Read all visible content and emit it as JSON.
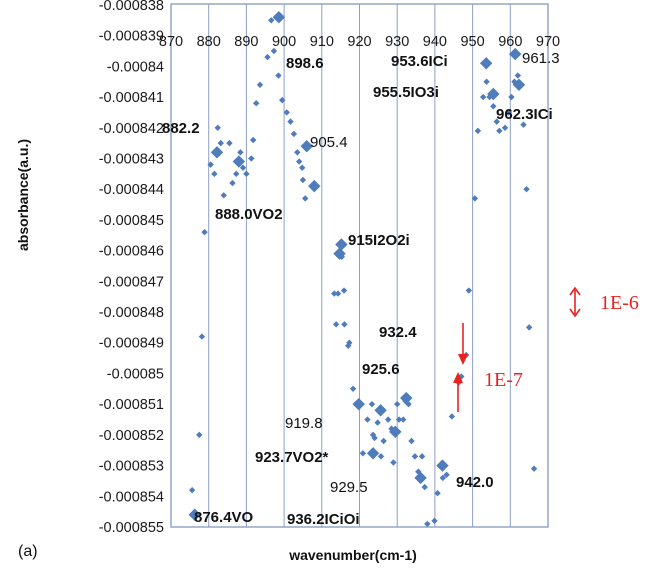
{
  "panel_label": "(a)",
  "chart_data": {
    "type": "scatter",
    "xlabel": "wavenumber(cm-1)",
    "ylabel": "absorbance(a.u.)",
    "xlim": [
      870,
      970
    ],
    "ylim": [
      -0.000855,
      -0.0008381
    ],
    "x_tick_labels": [
      "870",
      "880",
      "890",
      "900",
      "910",
      "920",
      "930",
      "940",
      "950",
      "960",
      "970"
    ],
    "y_ticks": [
      -0.000838,
      -0.000839,
      -0.00084,
      -0.000841,
      -0.000842,
      -0.000843,
      -0.000844,
      -0.000845,
      -0.000846,
      -0.000847,
      -0.000848,
      -0.000849,
      -0.00085,
      -0.000851,
      -0.000852,
      -0.000853,
      -0.000854,
      -0.000855
    ],
    "y_tick_labels": [
      "-0.000838",
      "-0.000839",
      "-0.00084",
      "-0.000841",
      "-0.000842",
      "-0.000843",
      "-0.000844",
      "-0.000845",
      "-0.000846",
      "-0.000847",
      "-0.000848",
      "-0.000849",
      "-0.00085",
      "-0.000851",
      "-0.000852",
      "-0.000853",
      "-0.000854",
      "-0.000855"
    ],
    "grid": "vertical",
    "marker_color": "#4f7cba",
    "note_color": "#e8231f",
    "points_small": [
      [
        875.6,
        -0.0008538
      ],
      [
        877.5,
        -0.000852
      ],
      [
        878.2,
        -0.0008488
      ],
      [
        878.9,
        -0.0008454
      ],
      [
        880.5,
        -0.0008432
      ],
      [
        881.5,
        -0.0008435
      ],
      [
        882.4,
        -0.000842
      ],
      [
        883.2,
        -0.0008425
      ],
      [
        884.0,
        -0.0008442
      ],
      [
        885.5,
        -0.0008425
      ],
      [
        886.3,
        -0.0008438
      ],
      [
        887.3,
        -0.0008435
      ],
      [
        888.4,
        -0.0008428
      ],
      [
        889.1,
        -0.0008433
      ],
      [
        890.0,
        -0.0008435
      ],
      [
        891.3,
        -0.000843
      ],
      [
        891.8,
        -0.0008424
      ],
      [
        892.6,
        -0.0008412
      ],
      [
        893.6,
        -0.0008406
      ],
      [
        895.6,
        -0.0008397
      ],
      [
        896.6,
        -0.0008385
      ],
      [
        897.3,
        -0.0008395
      ],
      [
        898.5,
        -0.0008403
      ],
      [
        899.5,
        -0.0008411
      ],
      [
        900.7,
        -0.0008415
      ],
      [
        901.7,
        -0.0008418
      ],
      [
        902.6,
        -0.0008422
      ],
      [
        903.5,
        -0.0008428
      ],
      [
        904.0,
        -0.0008431
      ],
      [
        904.8,
        -0.0008433
      ],
      [
        905.0,
        -0.0008437
      ],
      [
        905.6,
        -0.0008443
      ],
      [
        915.3,
        -0.0008462
      ],
      [
        915.9,
        -0.0008473
      ],
      [
        913.8,
        -0.0008484
      ],
      [
        913.3,
        -0.0008474
      ],
      [
        914.3,
        -0.0008474
      ],
      [
        916.0,
        -0.0008484
      ],
      [
        917.0,
        -0.0008491
      ],
      [
        917.3,
        -0.000849
      ],
      [
        918.3,
        -0.0008505
      ],
      [
        919.0,
        -0.000851
      ],
      [
        920.9,
        -0.0008526
      ],
      [
        922.1,
        -0.0008515
      ],
      [
        923.3,
        -0.000851
      ],
      [
        923.6,
        -0.000852
      ],
      [
        924.0,
        -0.0008521
      ],
      [
        924.8,
        -0.0008516
      ],
      [
        925.7,
        -0.0008527
      ],
      [
        926.4,
        -0.0008522
      ],
      [
        927.6,
        -0.0008515
      ],
      [
        928.5,
        -0.0008518
      ],
      [
        929.0,
        -0.0008529
      ],
      [
        930.0,
        -0.000851
      ],
      [
        930.5,
        -0.0008515
      ],
      [
        931.6,
        -0.0008515
      ],
      [
        932.2,
        -0.0008509
      ],
      [
        933.0,
        -0.000851
      ],
      [
        933.8,
        -0.0008522
      ],
      [
        934.7,
        -0.0008527
      ],
      [
        935.6,
        -0.0008532
      ],
      [
        936.6,
        -0.0008527
      ],
      [
        937.3,
        -0.0008537
      ],
      [
        938.0,
        -0.0008549
      ],
      [
        939.9,
        -0.0008548
      ],
      [
        940.7,
        -0.0008539
      ],
      [
        942.1,
        -0.0008534
      ],
      [
        943.1,
        -0.0008533
      ],
      [
        944.5,
        -0.0008514
      ],
      [
        946.3,
        -0.0008503
      ],
      [
        947.0,
        -0.0008501
      ],
      [
        948.3,
        -0.0008494
      ],
      [
        949.0,
        -0.0008473
      ],
      [
        950.6,
        -0.0008443
      ],
      [
        951.4,
        -0.0008421
      ],
      [
        952.8,
        -0.000841
      ],
      [
        953.7,
        -0.0008405
      ],
      [
        954.5,
        -0.000841
      ],
      [
        955.5,
        -0.0008413
      ],
      [
        956.4,
        -0.0008418
      ],
      [
        957.1,
        -0.0008421
      ],
      [
        958.6,
        -0.000842
      ],
      [
        959.6,
        -0.0008415
      ],
      [
        960.3,
        -0.000841
      ],
      [
        961.1,
        -0.0008405
      ],
      [
        962.0,
        -0.0008403
      ],
      [
        963.5,
        -0.0008419
      ],
      [
        964.3,
        -0.000844
      ],
      [
        965.0,
        -0.0008485
      ],
      [
        966.3,
        -0.0008531
      ]
    ],
    "points_large": [
      [
        876.3,
        -0.0008546
      ],
      [
        882.2,
        -0.0008428
      ],
      [
        888.0,
        -0.0008431
      ],
      [
        898.6,
        -0.0008384
      ],
      [
        908.0,
        -0.0008439
      ],
      [
        906.0,
        -0.0008426
      ],
      [
        915.2,
        -0.0008458
      ],
      [
        914.7,
        -0.0008461
      ],
      [
        919.8,
        -0.000851
      ],
      [
        923.6,
        -0.0008526
      ],
      [
        925.6,
        -0.0008512
      ],
      [
        929.5,
        -0.0008519
      ],
      [
        932.4,
        -0.0008508
      ],
      [
        936.2,
        -0.0008534
      ],
      [
        942.0,
        -0.000853
      ],
      [
        953.6,
        -0.0008399
      ],
      [
        955.5,
        -0.0008409
      ],
      [
        962.3,
        -0.0008406
      ],
      [
        961.3,
        -0.0008396
      ]
    ],
    "annotations": [
      {
        "text": "898.6",
        "bold": true
      },
      {
        "text": "953.6ICi",
        "bold": true
      },
      {
        "text": "961.3",
        "bold": false
      },
      {
        "text": "955.5IO3i",
        "bold": true
      },
      {
        "text": "962.3ICi",
        "bold": true
      },
      {
        "text": "882.2",
        "bold": true
      },
      {
        "text": "905.4",
        "bold": false
      },
      {
        "text": "888.0VO2",
        "bold": true
      },
      {
        "text": "915I2O2i",
        "bold": true
      },
      {
        "text": "932.4",
        "bold": true
      },
      {
        "text": "925.6",
        "bold": true
      },
      {
        "text": "919.8",
        "bold": false
      },
      {
        "text": "923.7VO2*",
        "bold": true
      },
      {
        "text": "942.0",
        "bold": true
      },
      {
        "text": "929.5",
        "bold": false
      },
      {
        "text": "876.4VO",
        "bold": true
      },
      {
        "text": "936.2ICiOi",
        "bold": true
      }
    ],
    "scale_notes": [
      "1E-6",
      "1E-7"
    ]
  }
}
